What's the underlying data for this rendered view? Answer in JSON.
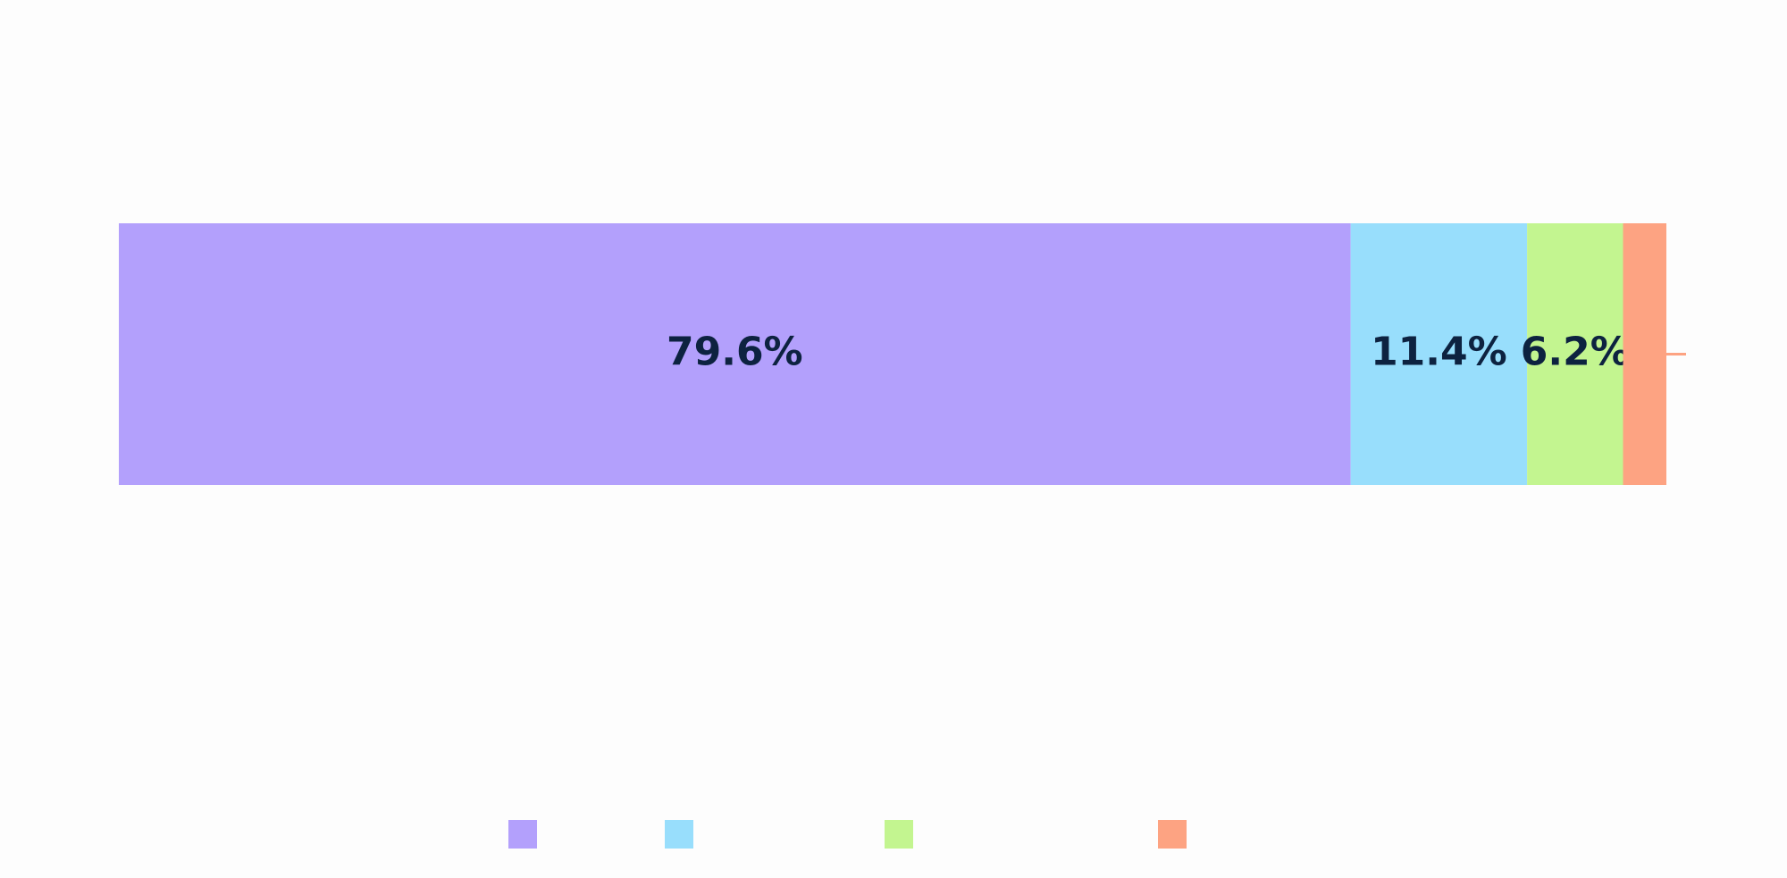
{
  "chart_data": {
    "type": "bar",
    "orientation": "horizontal",
    "stacked": true,
    "xlim": [
      0,
      100
    ],
    "series": [
      {
        "color": "#b3a0fc",
        "values": [
          79.6
        ],
        "value_labels": [
          "79.6%"
        ]
      },
      {
        "color": "#98defc",
        "values": [
          11.4
        ],
        "value_labels": [
          "11.4%"
        ]
      },
      {
        "color": "#c3f590",
        "values": [
          6.2
        ],
        "value_labels": [
          "6.2%"
        ]
      },
      {
        "color": "#fda382",
        "values": [
          2.8
        ]
      }
    ],
    "legend": true
  }
}
